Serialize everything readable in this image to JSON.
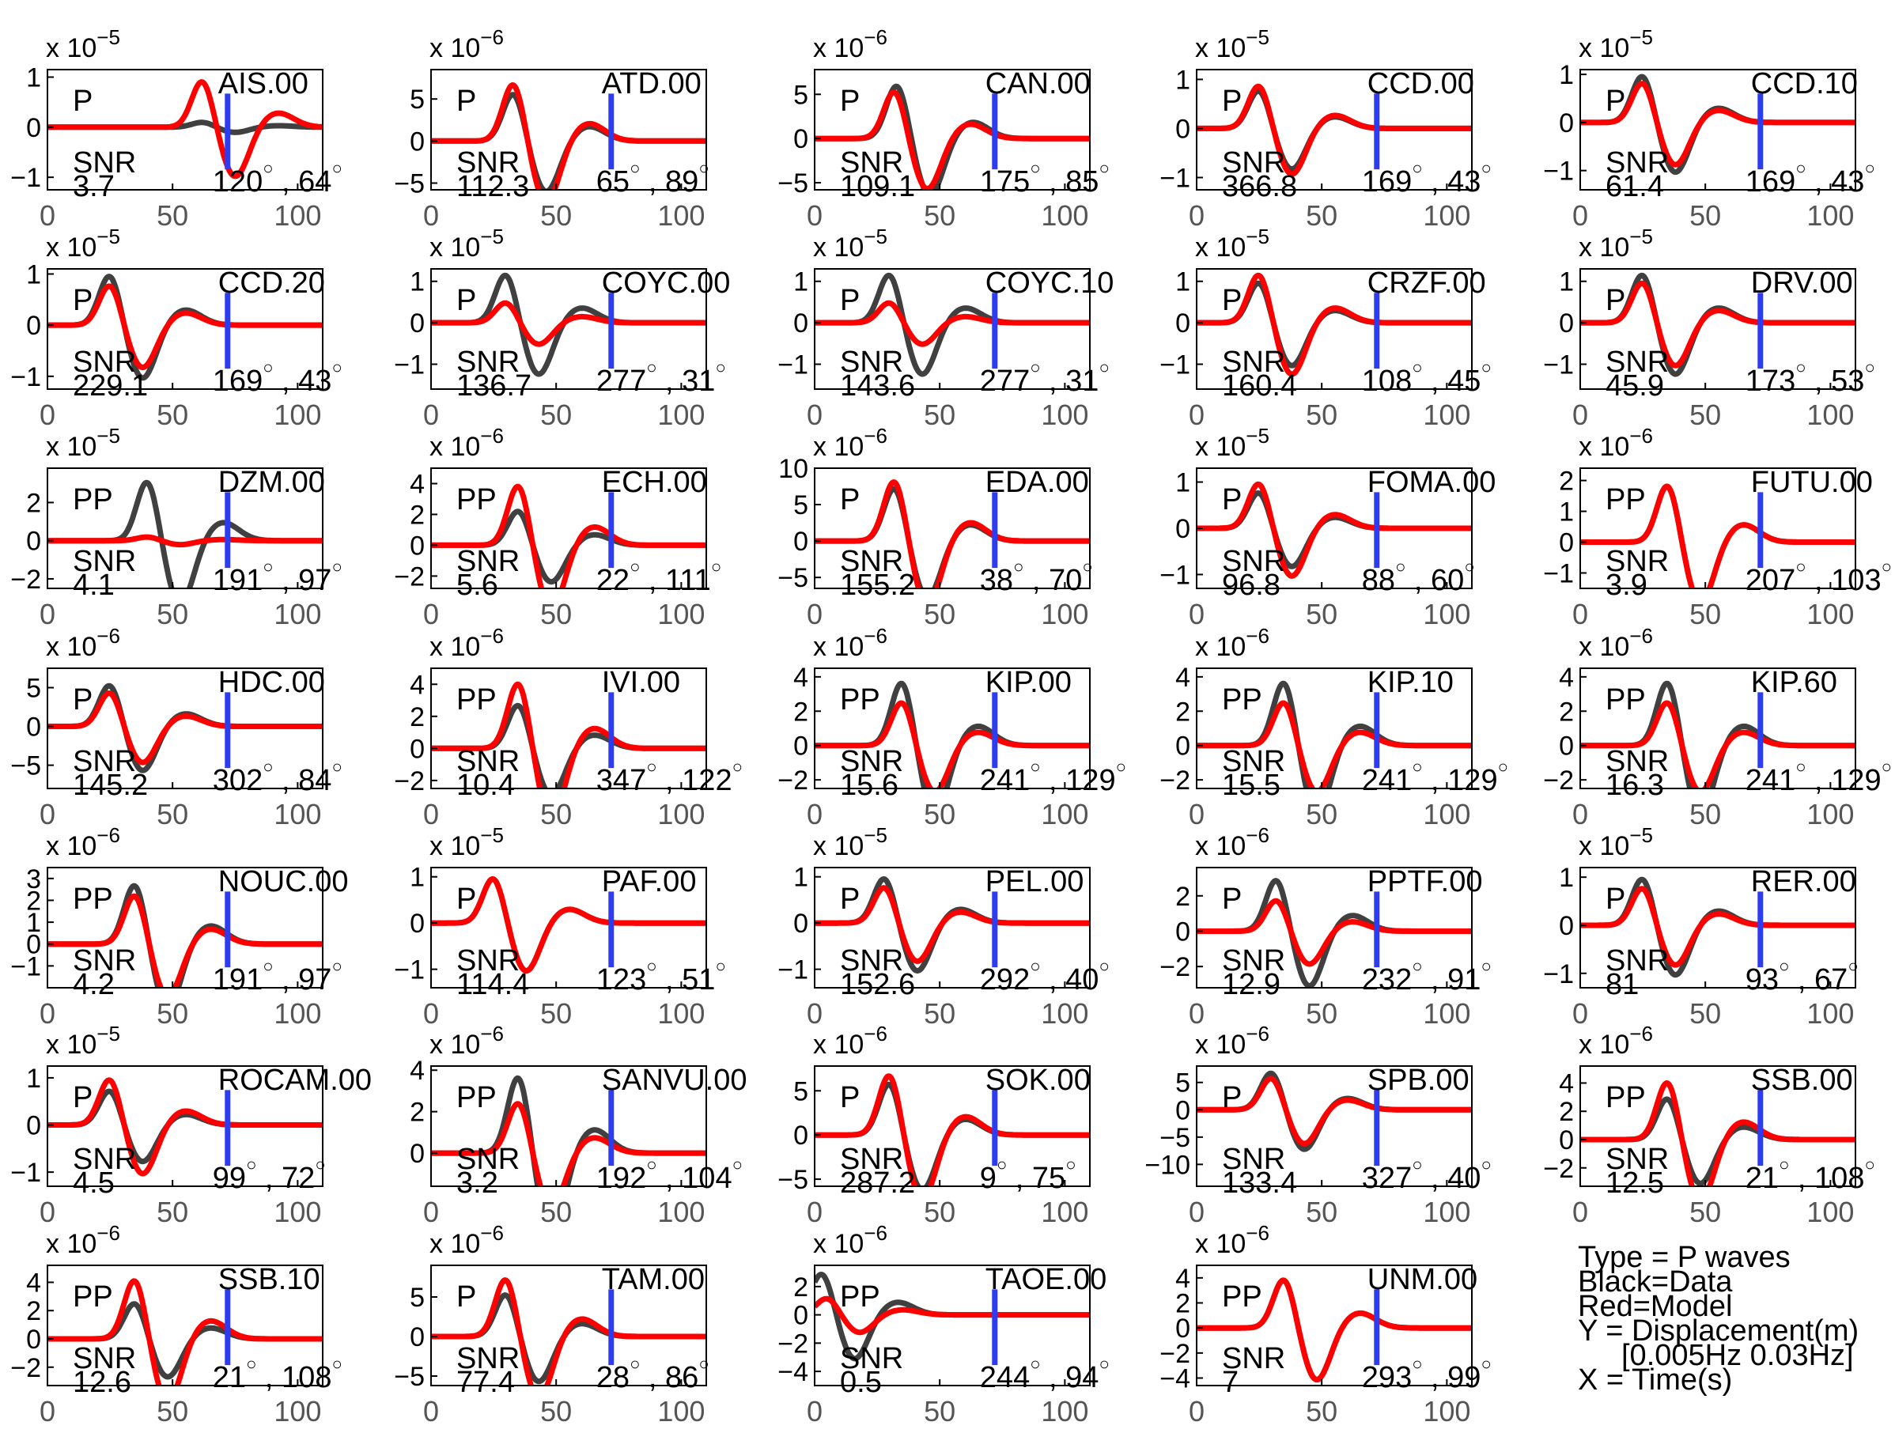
{
  "chart_data": {
    "type": "line",
    "legend": {
      "type": "Type = P waves",
      "data": "Black=Data",
      "model": "Red=Model",
      "ylabel": "Y = Displacement(m)",
      "band": "[0.005Hz 0.03Hz]",
      "xlabel": "X = Time(s)"
    },
    "colors": {
      "data": "#404040",
      "model": "#ff0000",
      "marker": "#2e3cf0"
    },
    "x_axis": {
      "ticks": [
        0,
        50,
        100
      ],
      "range": [
        0,
        110
      ]
    },
    "marker_time": 72,
    "panels": [
      {
        "station": "AIS.00",
        "phase": "P",
        "snr": "3.7",
        "az": "120",
        "dist": "64",
        "exp": "-5",
        "ticks": [
          -1,
          0,
          1
        ],
        "ylim": [
          -1.25,
          1.15
        ],
        "dPeak": 62,
        "dAmp": 0.1,
        "mPeak": 62,
        "mAmp": 0.95
      },
      {
        "station": "ATD.00",
        "phase": "P",
        "snr": "112.3",
        "az": "65",
        "dist": "89",
        "exp": "-6",
        "ticks": [
          -5,
          0,
          5
        ],
        "ylim": [
          -5.8,
          8.5
        ],
        "dPeak": 33,
        "dAmp": 5.8,
        "mPeak": 33,
        "mAmp": 7
      },
      {
        "station": "CAN.00",
        "phase": "P",
        "snr": "109.1",
        "az": "175",
        "dist": "85",
        "exp": "-6",
        "ticks": [
          -5,
          0,
          5
        ],
        "ylim": [
          -5.8,
          7.8
        ],
        "dPeak": 33,
        "dAmp": 6.2,
        "mPeak": 32,
        "mAmp": 5.5
      },
      {
        "station": "CCD.00",
        "phase": "P",
        "snr": "366.8",
        "az": "169",
        "dist": "43",
        "exp": "-5",
        "ticks": [
          -1,
          0,
          1
        ],
        "ylim": [
          -1.25,
          1.2
        ],
        "dPeak": 25,
        "dAmp": 0.8,
        "mPeak": 25,
        "mAmp": 0.9
      },
      {
        "station": "CCD.10",
        "phase": "P",
        "snr": "61.4",
        "az": "169",
        "dist": "43",
        "exp": "-5",
        "ticks": [
          -1,
          0,
          1
        ],
        "ylim": [
          -1.4,
          1.1
        ],
        "dPeak": 25,
        "dAmp": 1,
        "mPeak": 25,
        "mAmp": 0.85
      },
      {
        "station": "CCD.20",
        "phase": "P",
        "snr": "229.1",
        "az": "169",
        "dist": "43",
        "exp": "-5",
        "ticks": [
          -1,
          0,
          1
        ],
        "ylim": [
          -1.25,
          1.1
        ],
        "dPeak": 25,
        "dAmp": 1,
        "mPeak": 25,
        "mAmp": 0.8
      },
      {
        "station": "COYC.00",
        "phase": "P",
        "snr": "136.7",
        "az": "277",
        "dist": "31",
        "exp": "-5",
        "ticks": [
          -1,
          0,
          1
        ],
        "ylim": [
          -1.6,
          1.3
        ],
        "dPeak": 30,
        "dAmp": 1.2,
        "mPeak": 30,
        "mAmp": 0.5
      },
      {
        "station": "COYC.10",
        "phase": "P",
        "snr": "143.6",
        "az": "277",
        "dist": "31",
        "exp": "-5",
        "ticks": [
          -1,
          0,
          1
        ],
        "ylim": [
          -1.6,
          1.3
        ],
        "dPeak": 30,
        "dAmp": 1.2,
        "mPeak": 30,
        "mAmp": 0.5
      },
      {
        "station": "CRZF.00",
        "phase": "P",
        "snr": "160.4",
        "az": "108",
        "dist": "45",
        "exp": "-5",
        "ticks": [
          -1,
          0,
          1
        ],
        "ylim": [
          -1.6,
          1.3
        ],
        "dPeak": 25,
        "dAmp": 1,
        "mPeak": 25,
        "mAmp": 1.2
      },
      {
        "station": "DRV.00",
        "phase": "P",
        "snr": "45.9",
        "az": "173",
        "dist": "53",
        "exp": "-5",
        "ticks": [
          -1,
          0,
          1
        ],
        "ylim": [
          -1.6,
          1.3
        ],
        "dPeak": 25,
        "dAmp": 1.2,
        "mPeak": 25,
        "mAmp": 1
      },
      {
        "station": "DZM.00",
        "phase": "PP",
        "snr": "4.1",
        "az": "191",
        "dist": "97",
        "exp": "-5",
        "ticks": [
          -2,
          0,
          2
        ],
        "ylim": [
          -2.5,
          3.8
        ],
        "dPeak": 40,
        "dAmp": 3.2,
        "mPeak": 40,
        "mAmp": 0.2
      },
      {
        "station": "ECH.00",
        "phase": "PP",
        "snr": "5.6",
        "az": "22",
        "dist": "111",
        "exp": "-6",
        "ticks": [
          -2,
          0,
          2,
          4
        ],
        "ylim": [
          -2.8,
          5
        ],
        "dPeak": 35,
        "dAmp": 2.3,
        "mPeak": 35,
        "mAmp": 4
      },
      {
        "station": "EDA.00",
        "phase": "P",
        "snr": "155.2",
        "az": "38",
        "dist": "70",
        "exp": "-6",
        "ticks": [
          -5,
          0,
          5,
          10
        ],
        "ylim": [
          -6.5,
          10
        ],
        "dPeak": 32,
        "dAmp": 7.5,
        "mPeak": 32,
        "mAmp": 8.5
      },
      {
        "station": "FOMA.00",
        "phase": "P",
        "snr": "96.8",
        "az": "88",
        "dist": "60",
        "exp": "-5",
        "ticks": [
          -1,
          0,
          1
        ],
        "ylim": [
          -1.3,
          1.3
        ],
        "dPeak": 25,
        "dAmp": 0.8,
        "mPeak": 25,
        "mAmp": 1
      },
      {
        "station": "FUTU.00",
        "phase": "PP",
        "snr": "3.9",
        "az": "207",
        "dist": "103",
        "exp": "-6",
        "ticks": [
          -1,
          0,
          1,
          2
        ],
        "ylim": [
          -1.5,
          2.4
        ],
        "dPeak": 35,
        "dAmp": 1.9,
        "mPeak": 35,
        "mAmp": 1.9
      },
      {
        "station": "HDC.00",
        "phase": "P",
        "snr": "145.2",
        "az": "302",
        "dist": "84",
        "exp": "-6",
        "ticks": [
          -5,
          0,
          5
        ],
        "ylim": [
          -8,
          7.5
        ],
        "dPeak": 25,
        "dAmp": 5.5,
        "mPeak": 25,
        "mAmp": 4.5
      },
      {
        "station": "IVI.00",
        "phase": "PP",
        "snr": "10.4",
        "az": "347",
        "dist": "122",
        "exp": "-6",
        "ticks": [
          -2,
          0,
          2,
          4
        ],
        "ylim": [
          -2.5,
          5
        ],
        "dPeak": 35,
        "dAmp": 2.8,
        "mPeak": 35,
        "mAmp": 4.2
      },
      {
        "station": "KIP.00",
        "phase": "PP",
        "snr": "15.6",
        "az": "241",
        "dist": "129",
        "exp": "-6",
        "ticks": [
          -2,
          0,
          2,
          4
        ],
        "ylim": [
          -2.5,
          4.5
        ],
        "dPeak": 35,
        "dAmp": 3.8,
        "mPeak": 35,
        "mAmp": 2.6
      },
      {
        "station": "KIP.10",
        "phase": "PP",
        "snr": "15.5",
        "az": "241",
        "dist": "129",
        "exp": "-6",
        "ticks": [
          -2,
          0,
          2,
          4
        ],
        "ylim": [
          -2.5,
          4.5
        ],
        "dPeak": 35,
        "dAmp": 3.8,
        "mPeak": 35,
        "mAmp": 2.6
      },
      {
        "station": "KIP.60",
        "phase": "PP",
        "snr": "16.3",
        "az": "241",
        "dist": "129",
        "exp": "-6",
        "ticks": [
          -2,
          0,
          2,
          4
        ],
        "ylim": [
          -2.5,
          4.5
        ],
        "dPeak": 35,
        "dAmp": 3.8,
        "mPeak": 35,
        "mAmp": 2.6
      },
      {
        "station": "NOUC.00",
        "phase": "PP",
        "snr": "4.2",
        "az": "191",
        "dist": "97",
        "exp": "-6",
        "ticks": [
          -1,
          0,
          1,
          2,
          3
        ],
        "ylim": [
          -2,
          3.5
        ],
        "dPeak": 35,
        "dAmp": 2.8,
        "mPeak": 35,
        "mAmp": 2.3
      },
      {
        "station": "PAF.00",
        "phase": "P",
        "snr": "114.4",
        "az": "123",
        "dist": "51",
        "exp": "-5",
        "ticks": [
          -1,
          0,
          1
        ],
        "ylim": [
          -1.4,
          1.2
        ],
        "dPeak": 25,
        "dAmp": 1,
        "mPeak": 25,
        "mAmp": 1
      },
      {
        "station": "PEL.00",
        "phase": "P",
        "snr": "152.6",
        "az": "292",
        "dist": "40",
        "exp": "-5",
        "ticks": [
          -1,
          0,
          1
        ],
        "ylim": [
          -1.4,
          1.2
        ],
        "dPeak": 28,
        "dAmp": 1,
        "mPeak": 28,
        "mAmp": 0.8
      },
      {
        "station": "PPTF.00",
        "phase": "P",
        "snr": "12.9",
        "az": "232",
        "dist": "91",
        "exp": "-6",
        "ticks": [
          -2,
          0,
          2
        ],
        "ylim": [
          -3.2,
          3.6
        ],
        "dPeak": 32,
        "dAmp": 3,
        "mPeak": 32,
        "mAmp": 1.8
      },
      {
        "station": "RER.00",
        "phase": "P",
        "snr": "81",
        "az": "93",
        "dist": "67",
        "exp": "-5",
        "ticks": [
          -1,
          0,
          1
        ],
        "ylim": [
          -1.3,
          1.2
        ],
        "dPeak": 25,
        "dAmp": 1,
        "mPeak": 25,
        "mAmp": 0.8
      },
      {
        "station": "ROCAM.00",
        "phase": "P",
        "snr": "4.5",
        "az": "99",
        "dist": "72",
        "exp": "-5",
        "ticks": [
          -1,
          0,
          1
        ],
        "ylim": [
          -1.3,
          1.25
        ],
        "dPeak": 25,
        "dAmp": 0.75,
        "mPeak": 25,
        "mAmp": 1
      },
      {
        "station": "SANVU.00",
        "phase": "PP",
        "snr": "3.2",
        "az": "192",
        "dist": "104",
        "exp": "-6",
        "ticks": [
          0,
          2,
          4
        ],
        "ylim": [
          -1.6,
          4.2
        ],
        "dPeak": 35,
        "dAmp": 3.8,
        "mPeak": 35,
        "mAmp": 2.5
      },
      {
        "station": "SOK.00",
        "phase": "P",
        "snr": "287.2",
        "az": "9",
        "dist": "75",
        "exp": "-6",
        "ticks": [
          -5,
          0,
          5
        ],
        "ylim": [
          -5.8,
          7.8
        ],
        "dPeak": 30,
        "dAmp": 6,
        "mPeak": 30,
        "mAmp": 7
      },
      {
        "station": "SPB.00",
        "phase": "P",
        "snr": "133.4",
        "az": "327",
        "dist": "40",
        "exp": "-6",
        "ticks": [
          -10,
          -5,
          0,
          5
        ],
        "ylim": [
          -14,
          8
        ],
        "dPeak": 30,
        "dAmp": 7,
        "mPeak": 30,
        "mAmp": 6
      },
      {
        "station": "SSB.00",
        "phase": "PP",
        "snr": "12.5",
        "az": "21",
        "dist": "108",
        "exp": "-6",
        "ticks": [
          -2,
          0,
          2,
          4
        ],
        "ylim": [
          -3.3,
          5.2
        ],
        "dPeak": 35,
        "dAmp": 3,
        "mPeak": 35,
        "mAmp": 4.2
      },
      {
        "station": "SSB.10",
        "phase": "PP",
        "snr": "12.6",
        "az": "21",
        "dist": "108",
        "exp": "-6",
        "ticks": [
          -2,
          0,
          2,
          4
        ],
        "ylim": [
          -3.3,
          5.2
        ],
        "dPeak": 35,
        "dAmp": 2.6,
        "mPeak": 35,
        "mAmp": 4.3
      },
      {
        "station": "TAM.00",
        "phase": "P",
        "snr": "77.4",
        "az": "28",
        "dist": "86",
        "exp": "-6",
        "ticks": [
          -5,
          0,
          5
        ],
        "ylim": [
          -6.2,
          9
        ],
        "dPeak": 30,
        "dAmp": 5.5,
        "mPeak": 30,
        "mAmp": 7.5
      },
      {
        "station": "TAOE.00",
        "phase": "PP",
        "snr": "0.5",
        "az": "244",
        "dist": "94",
        "exp": "-6",
        "ticks": [
          -4,
          -2,
          0,
          2
        ],
        "ylim": [
          -5,
          3.5
        ],
        "dPeak": 3,
        "dAmp": 3,
        "mPeak": 5,
        "mAmp": 1.2
      },
      {
        "station": "UNM.00",
        "phase": "PP",
        "snr": "7",
        "az": "293",
        "dist": "99",
        "exp": "-6",
        "ticks": [
          -4,
          -2,
          0,
          2,
          4
        ],
        "ylim": [
          -4.6,
          5
        ],
        "dPeak": 35,
        "dAmp": 4,
        "mPeak": 35,
        "mAmp": 4
      }
    ]
  }
}
